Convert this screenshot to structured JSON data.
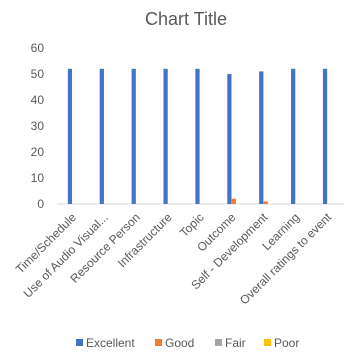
{
  "chart_data": {
    "type": "bar",
    "title": "Chart Title",
    "xlabel": "",
    "ylabel": "",
    "ylim": [
      0,
      60
    ],
    "yticks": [
      0,
      10,
      20,
      30,
      40,
      50,
      60
    ],
    "grid": false,
    "legend_position": "bottom",
    "categories": [
      "Time/Schedule",
      "Use of Audio Visual...",
      "Resource Person",
      "Infrastructure",
      "Topic",
      "Outcome",
      "Self - Development",
      "Learning",
      "Overall ratings to event"
    ],
    "series": [
      {
        "name": "Excellent",
        "color": "#4472C4",
        "values": [
          52,
          52,
          52,
          52,
          52,
          50,
          51,
          52,
          52
        ]
      },
      {
        "name": "Good",
        "color": "#ED7D31",
        "values": [
          0,
          0,
          0,
          0,
          0,
          2,
          1,
          0,
          0
        ]
      },
      {
        "name": "Fair",
        "color": "#A5A5A5",
        "values": [
          0,
          0,
          0,
          0,
          0,
          0,
          0,
          0,
          0
        ]
      },
      {
        "name": "Poor",
        "color": "#FFC000",
        "values": [
          0,
          0,
          0,
          0,
          0,
          0,
          0,
          0,
          0
        ]
      }
    ]
  }
}
